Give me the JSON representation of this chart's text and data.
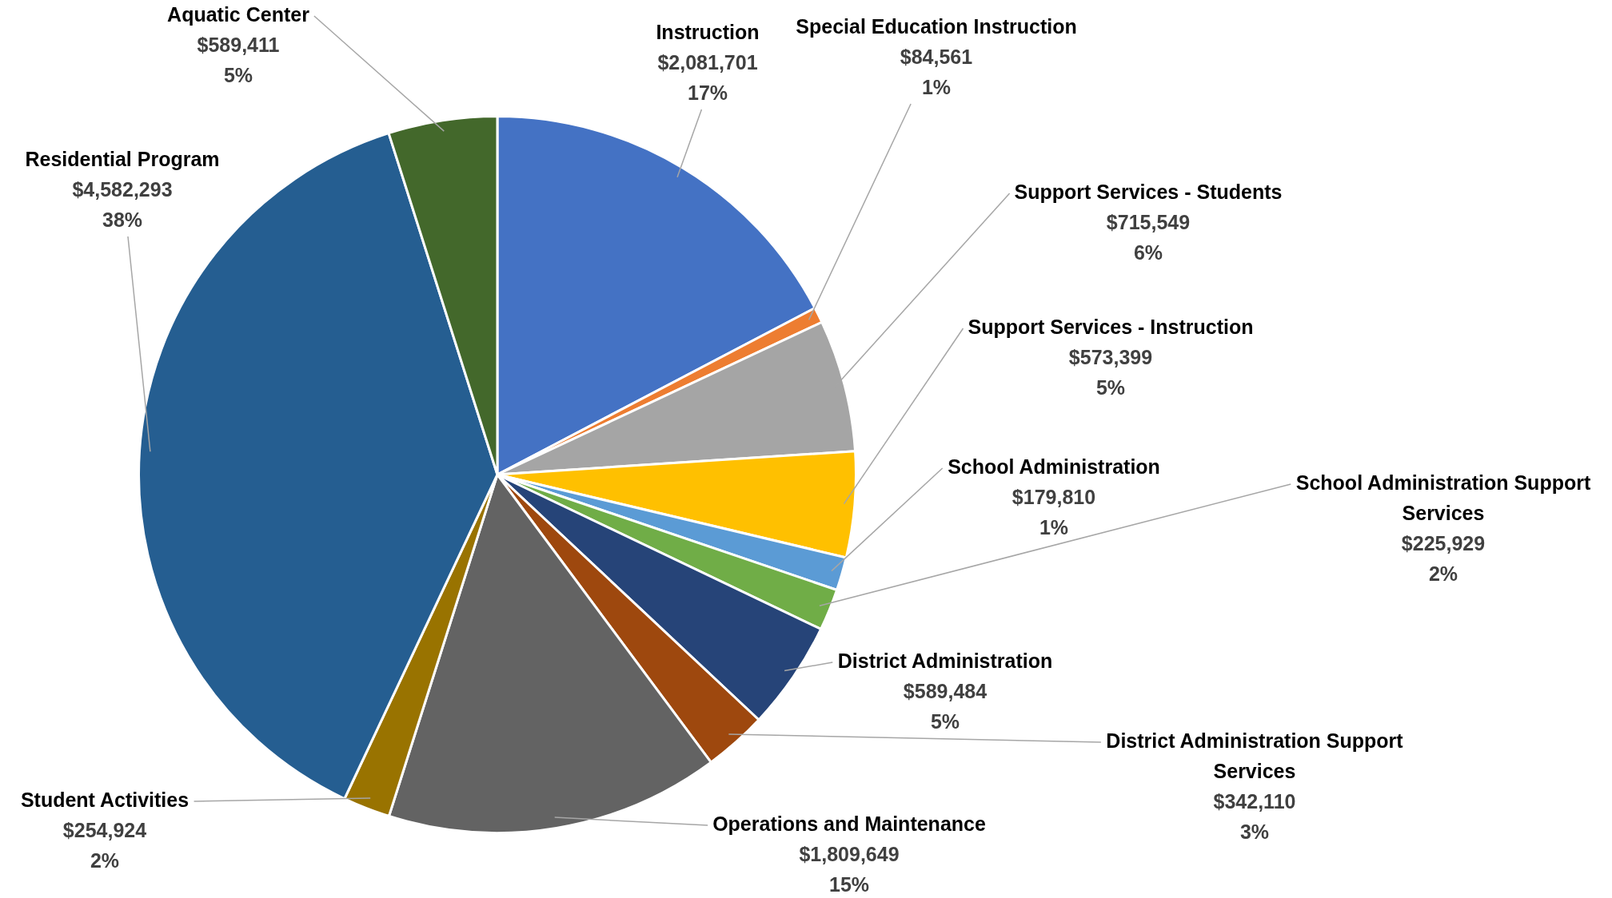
{
  "chart_data": {
    "type": "pie",
    "categories": [
      "Instruction",
      "Special Education Instruction",
      "Support Services - Students",
      "Support Services - Instruction",
      "School Administration",
      "School Administration Support Services",
      "District Administration",
      "District Administration Support Services",
      "Operations and Maintenance",
      "Student Activities",
      "Residential Program",
      "Aquatic Center"
    ],
    "values": [
      2081701,
      84561,
      715549,
      573399,
      179810,
      225929,
      589484,
      342110,
      1809649,
      254924,
      4582293,
      589411
    ],
    "colors": [
      "#4472c4",
      "#ed7d31",
      "#a5a5a5",
      "#ffc000",
      "#5b9bd5",
      "#70ad47",
      "#264478",
      "#9e480e",
      "#636363",
      "#997300",
      "#255e91",
      "#43682b"
    ],
    "value_labels": [
      "$2,081,701\n17%",
      "$84,561\n1%",
      "$715,549\n6%",
      "$573,399\n5%",
      "$179,810\n1%",
      "$225,929\n2%",
      "$589,484\n5%",
      "$342,110\n3%",
      "$1,809,649\n15%",
      "$254,924\n2%",
      "$4,582,293\n38%",
      "$589,411\n5%"
    ],
    "legend": false
  }
}
